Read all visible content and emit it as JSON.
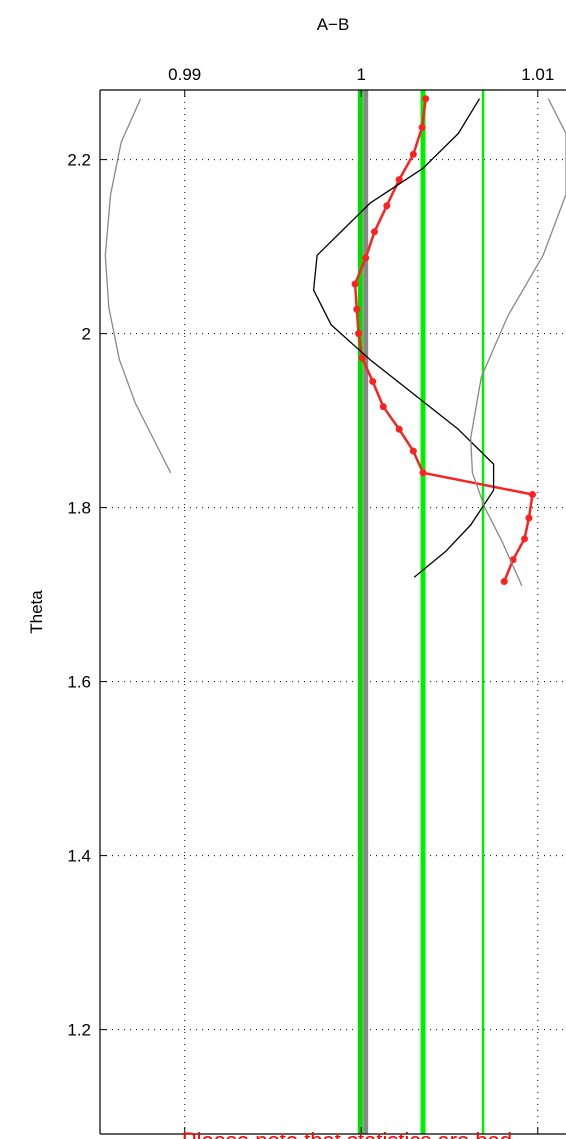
{
  "chart_data": {
    "type": "line",
    "title": "A−B",
    "xlabel": "",
    "ylabel": "Theta",
    "x_axis_position": "top",
    "xlim": [
      0.9852,
      1.0116
    ],
    "ylim": [
      1.08,
      2.28
    ],
    "x_ticks": [
      0.99,
      1,
      1.01
    ],
    "x_tick_labels": [
      "0.99",
      "1",
      "1.01"
    ],
    "y_ticks": [
      1.2,
      1.4,
      1.6,
      1.8,
      2.0,
      2.2
    ],
    "y_tick_labels": [
      "1.2",
      "1.4",
      "1.6",
      "1.8",
      "2",
      "2.2"
    ],
    "grid": true,
    "vertical_lines": [
      {
        "x": 0.99995,
        "color": "#00dd00",
        "style": "thick"
      },
      {
        "x": 1.00025,
        "color": "#888888",
        "style": "thick"
      },
      {
        "x": 1.0035,
        "color": "#00ee00",
        "style": "thick"
      },
      {
        "x": 1.0069,
        "color": "#00ee00",
        "style": "thin"
      }
    ],
    "series": [
      {
        "color": "#ff2020",
        "markers": true,
        "x": [
          1.00365,
          1.00345,
          1.00295,
          1.00215,
          1.00145,
          1.00075,
          1.00025,
          0.99965,
          0.99975,
          0.99985,
          1.00005,
          1.00065,
          1.00125,
          1.00215,
          1.00295,
          1.0035,
          1.0097,
          1.0095,
          1.00925,
          1.0086,
          1.0081
        ],
        "y": [
          2.27,
          2.237,
          2.206,
          2.177,
          2.147,
          2.117,
          2.087,
          2.057,
          2.028,
          2.0,
          1.972,
          1.945,
          1.916,
          1.89,
          1.865,
          1.84,
          1.815,
          1.788,
          1.764,
          1.74,
          1.715
        ]
      },
      {
        "color": "#000000",
        "markers": false,
        "x": [
          1.0067,
          1.0055,
          1.0035,
          1.0005,
          0.9975,
          0.9973,
          0.9983,
          1.0005,
          1.003,
          1.0055,
          1.0075,
          1.0075,
          1.0062,
          1.0048,
          1.003
        ],
        "y": [
          2.27,
          2.23,
          2.19,
          2.15,
          2.09,
          2.05,
          2.01,
          1.97,
          1.93,
          1.89,
          1.85,
          1.82,
          1.78,
          1.75,
          1.72
        ]
      },
      {
        "color": "#888888",
        "markers": false,
        "x": [
          0.9875,
          0.9864,
          0.9858,
          0.9855,
          0.9857,
          0.9863,
          0.9872,
          0.9882,
          0.9892
        ],
        "y": [
          2.27,
          2.22,
          2.16,
          2.09,
          2.03,
          1.97,
          1.92,
          1.88,
          1.84
        ]
      },
      {
        "color": "#888888",
        "markers": false,
        "x": [
          1.0106,
          1.0116,
          1.0116,
          1.0103,
          1.0083,
          1.0068,
          1.0062,
          1.0063,
          1.007,
          1.008,
          1.0091
        ],
        "y": [
          2.27,
          2.23,
          2.16,
          2.09,
          2.02,
          1.95,
          1.88,
          1.84,
          1.8,
          1.76,
          1.71
        ]
      }
    ],
    "annotation": {
      "text": "Please note that statistics are bad",
      "color": "#ff0000"
    }
  }
}
